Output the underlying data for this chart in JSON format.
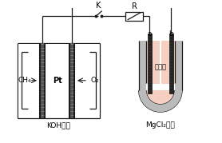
{
  "bg_color": "#ffffff",
  "line_color": "#1a1a1a",
  "fig_width": 2.78,
  "fig_height": 1.79,
  "dpi": 100,
  "labels": {
    "CH4": "CH₄",
    "O2": "O₂",
    "Pt": "Pt",
    "KOH": "KOH溶液",
    "graphite": "石墨棒",
    "MgCl2": "MgCl₂溶液",
    "K": "K",
    "R": "R",
    "a": "a",
    "b": "b"
  }
}
